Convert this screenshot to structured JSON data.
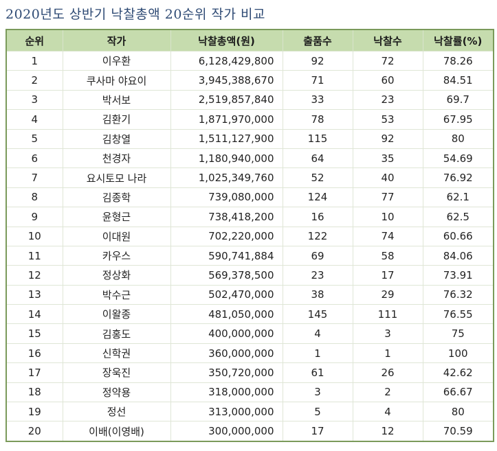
{
  "title": "2020년도 상반기 낙찰총액 20순위 작가 비교",
  "table": {
    "headers": [
      "순위",
      "작가",
      "낙찰총액(원)",
      "출품수",
      "낙찰수",
      "낙찰률(%)"
    ],
    "rows": [
      [
        "1",
        "이우환",
        "6,128,429,800",
        "92",
        "72",
        "78.26"
      ],
      [
        "2",
        "쿠사마 야요이",
        "3,945,388,670",
        "71",
        "60",
        "84.51"
      ],
      [
        "3",
        "박서보",
        "2,519,857,840",
        "33",
        "23",
        "69.7"
      ],
      [
        "4",
        "김환기",
        "1,871,970,000",
        "78",
        "53",
        "67.95"
      ],
      [
        "5",
        "김창열",
        "1,511,127,900",
        "115",
        "92",
        "80"
      ],
      [
        "6",
        "천경자",
        "1,180,940,000",
        "64",
        "35",
        "54.69"
      ],
      [
        "7",
        "요시토모 나라",
        "1,025,349,760",
        "52",
        "40",
        "76.92"
      ],
      [
        "8",
        "김종학",
        "739,080,000",
        "124",
        "77",
        "62.1"
      ],
      [
        "9",
        "윤형근",
        "738,418,200",
        "16",
        "10",
        "62.5"
      ],
      [
        "10",
        "이대원",
        "702,220,000",
        "122",
        "74",
        "60.66"
      ],
      [
        "11",
        "카우스",
        "590,741,884",
        "69",
        "58",
        "84.06"
      ],
      [
        "12",
        "정상화",
        "569,378,500",
        "23",
        "17",
        "73.91"
      ],
      [
        "13",
        "박수근",
        "502,470,000",
        "38",
        "29",
        "76.32"
      ],
      [
        "14",
        "이왈종",
        "481,050,000",
        "145",
        "111",
        "76.55"
      ],
      [
        "15",
        "김홍도",
        "400,000,000",
        "4",
        "3",
        "75"
      ],
      [
        "16",
        "신학권",
        "360,000,000",
        "1",
        "1",
        "100"
      ],
      [
        "17",
        "장욱진",
        "350,720,000",
        "61",
        "26",
        "42.62"
      ],
      [
        "18",
        "정약용",
        "318,000,000",
        "3",
        "2",
        "66.67"
      ],
      [
        "19",
        "정선",
        "313,000,000",
        "5",
        "4",
        "80"
      ],
      [
        "20",
        "이배(이영배)",
        "300,000,000",
        "17",
        "12",
        "70.59"
      ]
    ]
  },
  "colors": {
    "title": "#2e4a74",
    "header_bg": "#c6dcae",
    "border": "#7a9a5a"
  }
}
